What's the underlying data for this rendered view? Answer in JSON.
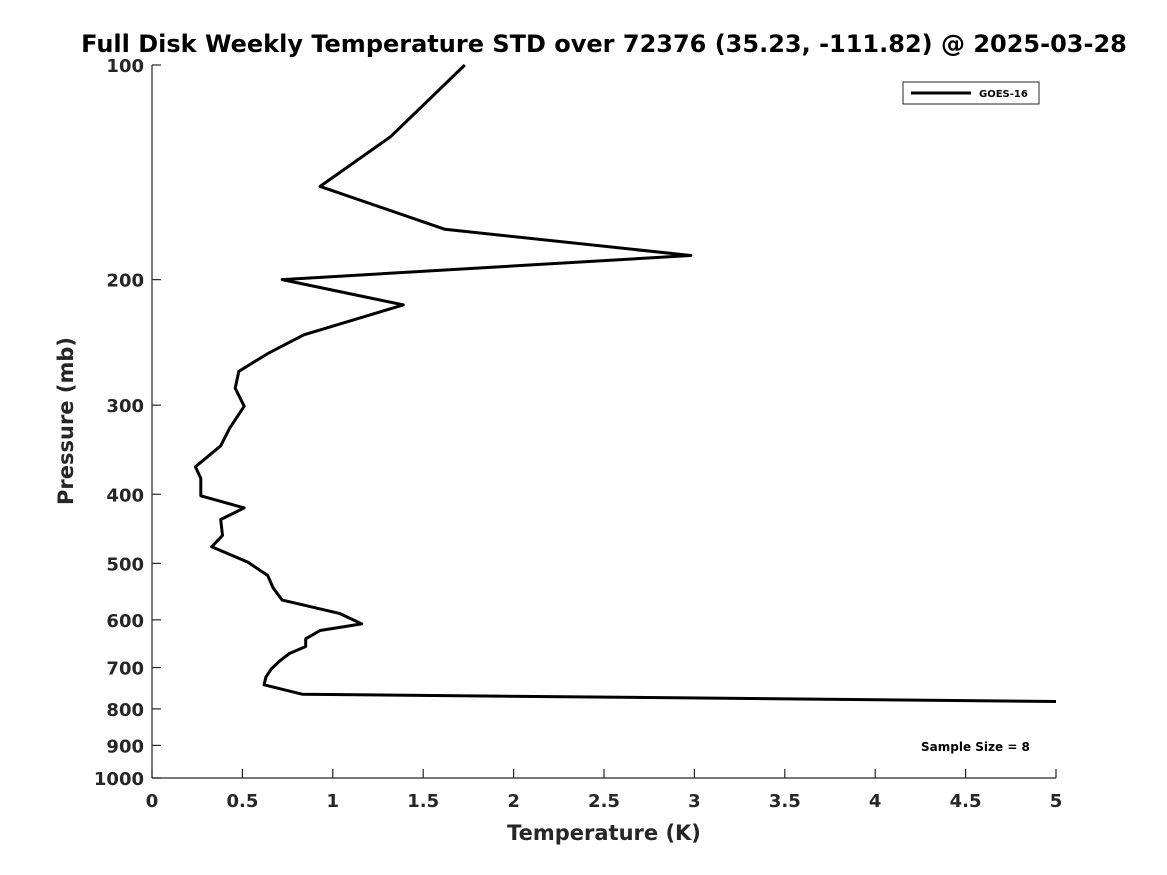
{
  "chart_data": {
    "type": "line",
    "title": "Full Disk Weekly Temperature STD over 72376 (35.23, -111.82) @ 2025-03-28",
    "xlabel": "Temperature (K)",
    "ylabel": "Pressure (mb)",
    "xlim": [
      0,
      5
    ],
    "ylim": [
      100,
      1000
    ],
    "y_scale": "log",
    "y_reversed": true,
    "grid": false,
    "legend_position": "top-right",
    "x_ticks": [
      {
        "value": 0,
        "label": "0"
      },
      {
        "value": 0.5,
        "label": "0.5"
      },
      {
        "value": 1,
        "label": "1"
      },
      {
        "value": 1.5,
        "label": "1.5"
      },
      {
        "value": 2,
        "label": "2"
      },
      {
        "value": 2.5,
        "label": "2.5"
      },
      {
        "value": 3,
        "label": "3"
      },
      {
        "value": 3.5,
        "label": "3.5"
      },
      {
        "value": 4,
        "label": "4"
      },
      {
        "value": 4.5,
        "label": "4.5"
      },
      {
        "value": 5,
        "label": "5"
      }
    ],
    "y_ticks": [
      {
        "value": 100,
        "label": "100"
      },
      {
        "value": 200,
        "label": "200"
      },
      {
        "value": 300,
        "label": "300"
      },
      {
        "value": 400,
        "label": "400"
      },
      {
        "value": 500,
        "label": "500"
      },
      {
        "value": 600,
        "label": "600"
      },
      {
        "value": 700,
        "label": "700"
      },
      {
        "value": 800,
        "label": "800"
      },
      {
        "value": 900,
        "label": "900"
      },
      {
        "value": 1000,
        "label": "1000"
      }
    ],
    "series": [
      {
        "name": "GOES-16",
        "color": "#000000",
        "points": [
          {
            "x": 1.73,
            "p": 100
          },
          {
            "x": 1.32,
            "p": 126
          },
          {
            "x": 0.93,
            "p": 148
          },
          {
            "x": 1.62,
            "p": 170
          },
          {
            "x": 2.98,
            "p": 185
          },
          {
            "x": 0.72,
            "p": 200
          },
          {
            "x": 1.39,
            "p": 217
          },
          {
            "x": 0.84,
            "p": 239
          },
          {
            "x": 0.64,
            "p": 254
          },
          {
            "x": 0.48,
            "p": 269
          },
          {
            "x": 0.46,
            "p": 284
          },
          {
            "x": 0.51,
            "p": 301
          },
          {
            "x": 0.43,
            "p": 323
          },
          {
            "x": 0.38,
            "p": 342
          },
          {
            "x": 0.24,
            "p": 366
          },
          {
            "x": 0.27,
            "p": 380
          },
          {
            "x": 0.27,
            "p": 402
          },
          {
            "x": 0.51,
            "p": 418
          },
          {
            "x": 0.38,
            "p": 434
          },
          {
            "x": 0.39,
            "p": 457
          },
          {
            "x": 0.33,
            "p": 474
          },
          {
            "x": 0.53,
            "p": 498
          },
          {
            "x": 0.64,
            "p": 520
          },
          {
            "x": 0.67,
            "p": 541
          },
          {
            "x": 0.72,
            "p": 563
          },
          {
            "x": 1.04,
            "p": 588
          },
          {
            "x": 1.16,
            "p": 608
          },
          {
            "x": 0.93,
            "p": 621
          },
          {
            "x": 0.85,
            "p": 638
          },
          {
            "x": 0.85,
            "p": 654
          },
          {
            "x": 0.76,
            "p": 669
          },
          {
            "x": 0.71,
            "p": 684
          },
          {
            "x": 0.66,
            "p": 703
          },
          {
            "x": 0.63,
            "p": 722
          },
          {
            "x": 0.62,
            "p": 740
          },
          {
            "x": 0.83,
            "p": 763
          },
          {
            "x": 5.0,
            "p": 781
          }
        ]
      }
    ],
    "annotations": [
      "Sample Size = 8"
    ]
  }
}
